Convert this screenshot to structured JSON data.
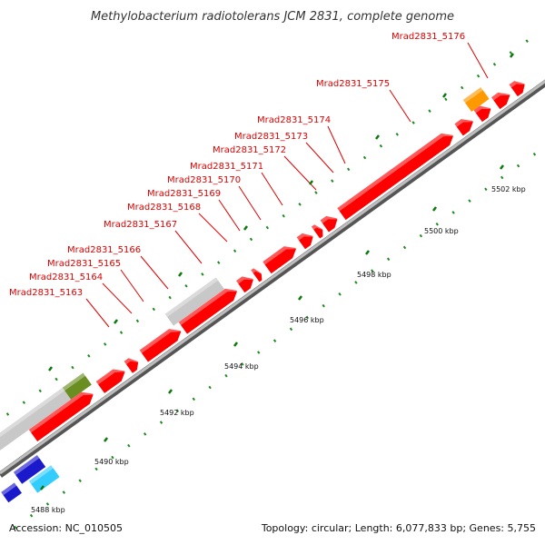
{
  "title": "Methylobacterium radiotolerans JCM 2831, complete genome",
  "footer": {
    "accession": "Accession: NC_010505",
    "summary": "Topology: circular; Length: 6,077,833 bp; Genes: 5,755"
  },
  "colors": {
    "cds": "#ff0000",
    "gray_feature": "#c8c8c8",
    "green_feature": "#6b8e23",
    "orange_feature": "#ff9900",
    "blue_feature": "#1a1acc",
    "cyan_feature": "#33ccff",
    "backbone": "#9a9a9a",
    "label": "#e00000",
    "tick_major": "#0a7a0a"
  },
  "gene_labels": [
    {
      "id": "Mrad2831_5163",
      "text": "Mrad2831_5163"
    },
    {
      "id": "Mrad2831_5164",
      "text": "Mrad2831_5164"
    },
    {
      "id": "Mrad2831_5165",
      "text": "Mrad2831_5165"
    },
    {
      "id": "Mrad2831_5166",
      "text": "Mrad2831_5166"
    },
    {
      "id": "Mrad2831_5167",
      "text": "Mrad2831_5167"
    },
    {
      "id": "Mrad2831_5168",
      "text": "Mrad2831_5168"
    },
    {
      "id": "Mrad2831_5169",
      "text": "Mrad2831_5169"
    },
    {
      "id": "Mrad2831_5170",
      "text": "Mrad2831_5170"
    },
    {
      "id": "Mrad2831_5171",
      "text": "Mrad2831_5171"
    },
    {
      "id": "Mrad2831_5172",
      "text": "Mrad2831_5172"
    },
    {
      "id": "Mrad2831_5173",
      "text": "Mrad2831_5173"
    },
    {
      "id": "Mrad2831_5174",
      "text": "Mrad2831_5174"
    },
    {
      "id": "Mrad2831_5175",
      "text": "Mrad2831_5175"
    },
    {
      "id": "Mrad2831_5176",
      "text": "Mrad2831_5176"
    }
  ],
  "ticks": [
    {
      "id": "t5488",
      "text": "5488 kbp"
    },
    {
      "id": "t5490",
      "text": "5490 kbp"
    },
    {
      "id": "t5492",
      "text": "5492 kbp"
    },
    {
      "id": "t5494",
      "text": "5494 kbp"
    },
    {
      "id": "t5496",
      "text": "5496 kbp"
    },
    {
      "id": "t5498",
      "text": "5498 kbp"
    },
    {
      "id": "t5500",
      "text": "5500 kbp"
    },
    {
      "id": "t5502",
      "text": "5502 kbp"
    }
  ]
}
